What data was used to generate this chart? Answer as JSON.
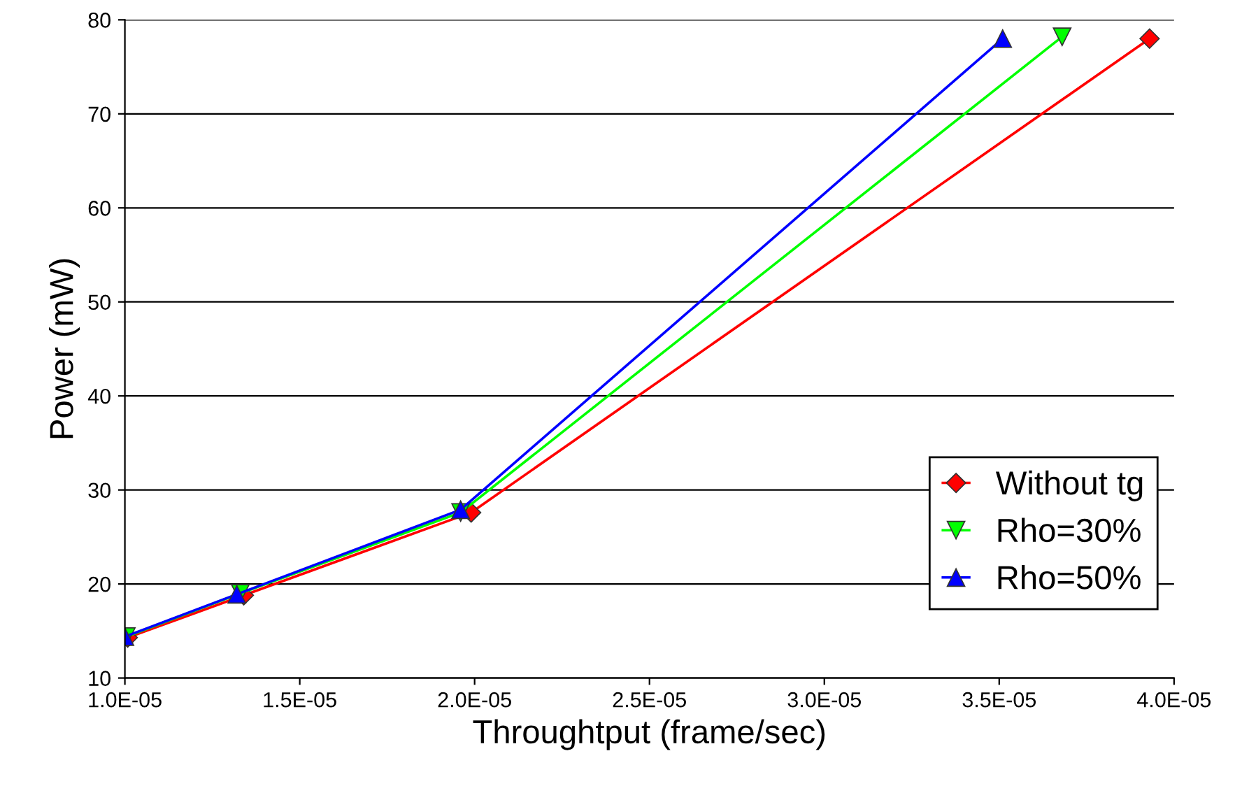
{
  "chart_data": {
    "type": "line",
    "xlabel": "Throughtput (frame/sec)",
    "ylabel": "Power (mW)",
    "series": [
      {
        "name": "Without tg",
        "color": "#ff0000",
        "marker": "diamond",
        "x": [
          1.008e-05,
          1.34e-05,
          1.99e-05,
          3.93e-05
        ],
        "values": [
          14.3,
          18.8,
          27.6,
          78.0
        ]
      },
      {
        "name": "Rho=30%",
        "color": "#00ff00",
        "marker": "triangle_down",
        "x": [
          1.004e-05,
          1.33e-05,
          1.96e-05,
          3.68e-05
        ],
        "values": [
          14.4,
          19.0,
          27.6,
          78.2
        ]
      },
      {
        "name": "Rho=50%",
        "color": "#0000ff",
        "marker": "triangle",
        "x": [
          1e-05,
          1.32e-05,
          1.96e-05,
          3.51e-05
        ],
        "values": [
          14.4,
          18.9,
          27.9,
          78.0
        ]
      }
    ],
    "xlim": [
      1e-05,
      4e-05
    ],
    "xticks": [
      {
        "value": 1e-05,
        "label": "1.0E-05"
      },
      {
        "value": 1.5e-05,
        "label": "1.5E-05"
      },
      {
        "value": 2e-05,
        "label": "2.0E-05"
      },
      {
        "value": 2.5e-05,
        "label": "2.5E-05"
      },
      {
        "value": 3e-05,
        "label": "3.0E-05"
      },
      {
        "value": 3.5e-05,
        "label": "3.5E-05"
      },
      {
        "value": 4e-05,
        "label": "4.0E-05"
      }
    ],
    "ylim": [
      10,
      80
    ],
    "yticks": [
      10,
      20,
      30,
      40,
      50,
      60,
      70,
      80
    ],
    "grid": "y",
    "legend": "right",
    "line_style": "solid"
  }
}
